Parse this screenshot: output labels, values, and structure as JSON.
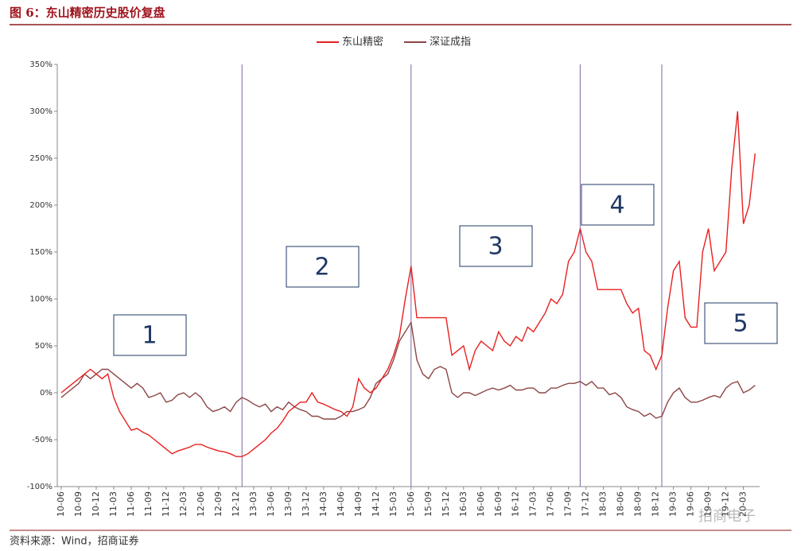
{
  "header": {
    "title": "图 6：东山精密历史股价复盘"
  },
  "chart_data": {
    "type": "line",
    "x": [
      "10-06",
      "10-07",
      "10-08",
      "10-09",
      "10-10",
      "10-11",
      "10-12",
      "11-01",
      "11-02",
      "11-03",
      "11-04",
      "11-05",
      "11-06",
      "11-07",
      "11-08",
      "11-09",
      "11-10",
      "11-11",
      "11-12",
      "12-01",
      "12-02",
      "12-03",
      "12-04",
      "12-05",
      "12-06",
      "12-07",
      "12-08",
      "12-09",
      "12-10",
      "12-11",
      "12-12",
      "13-01",
      "13-02",
      "13-03",
      "13-04",
      "13-05",
      "13-06",
      "13-07",
      "13-08",
      "13-09",
      "13-10",
      "13-11",
      "13-12",
      "14-01",
      "14-02",
      "14-03",
      "14-04",
      "14-05",
      "14-06",
      "14-07",
      "14-08",
      "14-09",
      "14-10",
      "14-11",
      "14-12",
      "15-01",
      "15-02",
      "15-03",
      "15-04",
      "15-05",
      "15-06",
      "15-07",
      "15-08",
      "15-09",
      "15-10",
      "15-11",
      "15-12",
      "16-01",
      "16-02",
      "16-03",
      "16-04",
      "16-05",
      "16-06",
      "16-07",
      "16-08",
      "16-09",
      "16-10",
      "16-11",
      "16-12",
      "17-01",
      "17-02",
      "17-03",
      "17-04",
      "17-05",
      "17-06",
      "17-07",
      "17-08",
      "17-09",
      "17-10",
      "17-11",
      "17-12",
      "18-01",
      "18-02",
      "18-03",
      "18-04",
      "18-05",
      "18-06",
      "18-07",
      "18-08",
      "18-09",
      "18-10",
      "18-11",
      "18-12",
      "19-01",
      "19-02",
      "19-03",
      "19-04",
      "19-05",
      "19-06",
      "19-07",
      "19-08",
      "19-09",
      "19-10",
      "19-11",
      "19-12",
      "20-01",
      "20-02",
      "20-03",
      "20-04",
      "20-05"
    ],
    "series": [
      {
        "name": "东山精密",
        "color": "#e8201f",
        "values": [
          0,
          5,
          10,
          15,
          20,
          25,
          20,
          15,
          20,
          -5,
          -20,
          -30,
          -40,
          -38,
          -42,
          -45,
          -50,
          -55,
          -60,
          -65,
          -62,
          -60,
          -58,
          -55,
          -55,
          -58,
          -60,
          -62,
          -63,
          -65,
          -68,
          -68,
          -65,
          -60,
          -55,
          -50,
          -43,
          -38,
          -30,
          -20,
          -15,
          -10,
          -10,
          0,
          -10,
          -12,
          -15,
          -18,
          -20,
          -25,
          -15,
          15,
          5,
          0,
          5,
          15,
          25,
          40,
          60,
          100,
          135,
          80,
          80,
          80,
          80,
          80,
          80,
          40,
          45,
          50,
          25,
          45,
          55,
          50,
          45,
          65,
          55,
          50,
          60,
          55,
          70,
          65,
          75,
          85,
          100,
          95,
          105,
          140,
          150,
          175,
          150,
          140,
          110,
          110,
          110,
          110,
          110,
          95,
          85,
          90,
          45,
          40,
          25,
          40,
          90,
          130,
          140,
          80,
          70,
          70,
          150,
          175,
          130,
          140,
          150,
          240,
          300,
          180,
          200,
          255
        ]
      },
      {
        "name": "深证成指",
        "color": "#8c4646",
        "values": [
          -5,
          0,
          5,
          10,
          20,
          15,
          20,
          25,
          25,
          20,
          15,
          10,
          5,
          10,
          5,
          -5,
          -3,
          0,
          -10,
          -8,
          -2,
          0,
          -5,
          0,
          -5,
          -15,
          -20,
          -18,
          -15,
          -20,
          -10,
          -5,
          -8,
          -12,
          -15,
          -12,
          -20,
          -15,
          -18,
          -10,
          -15,
          -18,
          -20,
          -25,
          -25,
          -28,
          -28,
          -28,
          -25,
          -20,
          -20,
          -18,
          -15,
          -5,
          10,
          15,
          20,
          35,
          55,
          65,
          75,
          35,
          20,
          15,
          25,
          28,
          25,
          0,
          -5,
          0,
          0,
          -3,
          0,
          3,
          5,
          3,
          5,
          8,
          3,
          3,
          5,
          5,
          0,
          0,
          5,
          5,
          8,
          10,
          10,
          12,
          8,
          12,
          5,
          5,
          -2,
          0,
          -5,
          -15,
          -18,
          -20,
          -25,
          -22,
          -27,
          -25,
          -10,
          0,
          5,
          -5,
          -10,
          -10,
          -8,
          -5,
          -3,
          -5,
          5,
          10,
          12,
          0,
          3,
          8
        ]
      }
    ],
    "xticks": [
      "10-06",
      "10-09",
      "10-12",
      "11-03",
      "11-06",
      "11-09",
      "11-12",
      "12-03",
      "12-06",
      "12-09",
      "12-12",
      "13-03",
      "13-06",
      "13-09",
      "13-12",
      "14-03",
      "14-06",
      "14-09",
      "14-12",
      "15-03",
      "15-06",
      "15-09",
      "15-12",
      "16-03",
      "16-06",
      "16-09",
      "16-12",
      "17-03",
      "17-06",
      "17-09",
      "17-12",
      "18-03",
      "18-06",
      "18-09",
      "18-12",
      "19-03",
      "19-06",
      "19-09",
      "19-12",
      "20-03"
    ],
    "ylim": [
      -100,
      350
    ],
    "yticks": [
      {
        "value": -100,
        "label": "-100%"
      },
      {
        "value": -50,
        "label": "-50%"
      },
      {
        "value": 0,
        "label": "0%"
      },
      {
        "value": 50,
        "label": "50%"
      },
      {
        "value": 100,
        "label": "100%"
      },
      {
        "value": 150,
        "label": "150%"
      },
      {
        "value": 200,
        "label": "200%"
      },
      {
        "value": 250,
        "label": "250%"
      },
      {
        "value": 300,
        "label": "300%"
      },
      {
        "value": 350,
        "label": "350%"
      }
    ],
    "vlines": [
      "13-01",
      "15-06",
      "17-11",
      "19-01"
    ],
    "vline_color": "#8064a2",
    "annotations": [
      "1",
      "2",
      "3",
      "4",
      "5"
    ],
    "legend": "top",
    "grid": false
  },
  "footer": {
    "source": "资料来源：Wind，招商证券",
    "watermark": "招商电子"
  }
}
